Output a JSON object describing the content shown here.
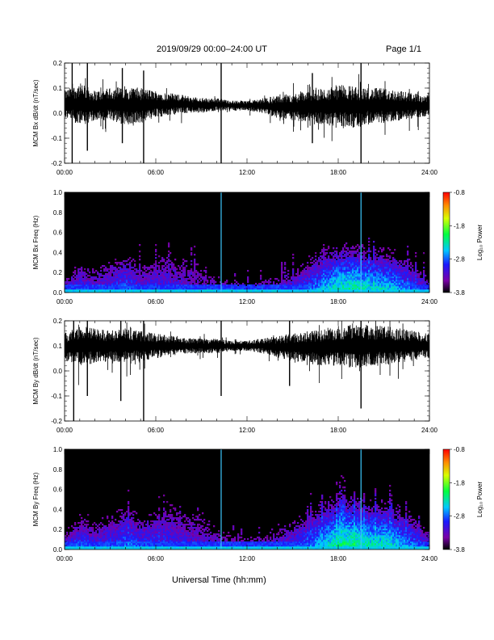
{
  "header": {
    "title": "2019/09/29  00:00–24:00 UT",
    "page": "Page 1/1"
  },
  "chart_data": [
    {
      "type": "line",
      "ylabel": "MCM Bx dB/dt (nT/sec)",
      "xlim": [
        0,
        24
      ],
      "ylim": [
        -0.2,
        0.2
      ],
      "xticks": [
        "00:00",
        "06:00",
        "12:00",
        "18:00",
        "24:00"
      ],
      "yticks": [
        "-0.2",
        "-0.1",
        "0.0",
        "0.1",
        "0.2"
      ],
      "envelope": {
        "hours": [
          0,
          1,
          2,
          3,
          4,
          5,
          6,
          7,
          8,
          9,
          10,
          11,
          12,
          13,
          14,
          15,
          16,
          17,
          18,
          19,
          20,
          21,
          22,
          23,
          24
        ],
        "upper": [
          0.09,
          0.12,
          0.09,
          0.1,
          0.11,
          0.1,
          0.09,
          0.08,
          0.07,
          0.06,
          0.06,
          0.05,
          0.05,
          0.06,
          0.07,
          0.08,
          0.09,
          0.1,
          0.11,
          0.11,
          0.1,
          0.1,
          0.09,
          0.08,
          0.07
        ],
        "lower": [
          -0.02,
          -0.05,
          -0.03,
          -0.03,
          -0.05,
          -0.04,
          -0.02,
          -0.01,
          0.0,
          0.0,
          0.01,
          0.01,
          0.01,
          0.0,
          -0.02,
          -0.03,
          -0.04,
          -0.05,
          -0.05,
          -0.06,
          -0.04,
          -0.04,
          -0.03,
          -0.02,
          -0.01
        ]
      },
      "spikes": [
        {
          "hour": 0.5,
          "min": -0.2,
          "max": 0.2
        },
        {
          "hour": 1.5,
          "min": -0.15,
          "max": 0.2
        },
        {
          "hour": 3.8,
          "min": -0.12,
          "max": 0.18
        },
        {
          "hour": 5.2,
          "min": -0.2,
          "max": 0.17
        },
        {
          "hour": 10.3,
          "min": -0.2,
          "max": 0.2
        },
        {
          "hour": 16.3,
          "min": -0.12,
          "max": 0.16
        },
        {
          "hour": 19.5,
          "min": -0.2,
          "max": 0.2
        }
      ]
    },
    {
      "type": "heatmap",
      "ylabel": "MCM Bx Freq (Hz)",
      "colorbar_label": "Log₁₀ Power",
      "xlim": [
        0,
        24
      ],
      "ylim": [
        0,
        1
      ],
      "xticks": [
        "00:00",
        "06:00",
        "12:00",
        "18:00",
        "24:00"
      ],
      "yticks": [
        "0.0",
        "0.2",
        "0.4",
        "0.6",
        "0.8",
        "1.0"
      ],
      "clim": [
        -3.8,
        -0.8
      ],
      "cticks": [
        "-0.8",
        "-1.8",
        "-2.8",
        "-3.8"
      ],
      "activity_hours": [
        0,
        1,
        2,
        3,
        4,
        5,
        6,
        7,
        8,
        9,
        10,
        11,
        12,
        13,
        14,
        15,
        16,
        17,
        18,
        19,
        20,
        21,
        22,
        23,
        24
      ],
      "activity_top_hz": [
        0.12,
        0.25,
        0.2,
        0.28,
        0.35,
        0.25,
        0.3,
        0.35,
        0.3,
        0.25,
        0.15,
        0.1,
        0.08,
        0.1,
        0.15,
        0.2,
        0.3,
        0.4,
        0.45,
        0.45,
        0.4,
        0.4,
        0.35,
        0.25,
        0.12
      ],
      "activity_strength": [
        0.3,
        0.4,
        0.3,
        0.35,
        0.45,
        0.35,
        0.35,
        0.3,
        0.25,
        0.2,
        0.15,
        0.1,
        0.1,
        0.15,
        0.2,
        0.3,
        0.45,
        0.6,
        0.75,
        0.8,
        0.7,
        0.7,
        0.6,
        0.45,
        0.3
      ],
      "vertical_lines_hours": [
        10.3,
        19.5
      ]
    },
    {
      "type": "line",
      "ylabel": "MCM By dB/dt (nT/sec)",
      "xlim": [
        0,
        24
      ],
      "ylim": [
        -0.2,
        0.2
      ],
      "xticks": [
        "00:00",
        "06:00",
        "12:00",
        "18:00",
        "24:00"
      ],
      "yticks": [
        "-0.2",
        "-0.1",
        "0.0",
        "0.1",
        "0.2"
      ],
      "envelope": {
        "hours": [
          0,
          1,
          2,
          3,
          4,
          5,
          6,
          7,
          8,
          9,
          10,
          11,
          12,
          13,
          14,
          15,
          16,
          17,
          18,
          19,
          20,
          21,
          22,
          23,
          24
        ],
        "upper": [
          0.15,
          0.18,
          0.17,
          0.16,
          0.17,
          0.16,
          0.15,
          0.14,
          0.13,
          0.13,
          0.13,
          0.12,
          0.12,
          0.13,
          0.14,
          0.15,
          0.16,
          0.17,
          0.18,
          0.19,
          0.18,
          0.18,
          0.17,
          0.16,
          0.15
        ],
        "lower": [
          0.04,
          0.02,
          0.03,
          0.04,
          0.03,
          0.04,
          0.05,
          0.06,
          0.07,
          0.07,
          0.07,
          0.08,
          0.08,
          0.07,
          0.05,
          0.04,
          0.03,
          0.02,
          0.02,
          0.01,
          0.02,
          0.02,
          0.03,
          0.04,
          0.05
        ]
      },
      "spikes": [
        {
          "hour": 0.6,
          "min": -0.2,
          "max": 0.2
        },
        {
          "hour": 1.5,
          "min": -0.1,
          "max": 0.2
        },
        {
          "hour": 3.7,
          "min": -0.12,
          "max": 0.2
        },
        {
          "hour": 5.2,
          "min": -0.2,
          "max": 0.2
        },
        {
          "hour": 10.3,
          "min": -0.1,
          "max": 0.2
        },
        {
          "hour": 14.8,
          "min": -0.06,
          "max": 0.2
        },
        {
          "hour": 19.5,
          "min": -0.15,
          "max": 0.2
        }
      ]
    },
    {
      "type": "heatmap",
      "ylabel": "MCM By Freq (Hz)",
      "colorbar_label": "Log₁₀ Power",
      "xlim": [
        0,
        24
      ],
      "ylim": [
        0,
        1
      ],
      "xticks": [
        "00:00",
        "06:00",
        "12:00",
        "18:00",
        "24:00"
      ],
      "yticks": [
        "0.0",
        "0.2",
        "0.4",
        "0.6",
        "0.8",
        "1.0"
      ],
      "clim": [
        -3.8,
        -0.8
      ],
      "cticks": [
        "-0.8",
        "-1.8",
        "-2.8",
        "-3.8"
      ],
      "activity_hours": [
        0,
        1,
        2,
        3,
        4,
        5,
        6,
        7,
        8,
        9,
        10,
        11,
        12,
        13,
        14,
        15,
        16,
        17,
        18,
        19,
        20,
        21,
        22,
        23,
        24
      ],
      "activity_top_hz": [
        0.15,
        0.3,
        0.25,
        0.3,
        0.4,
        0.3,
        0.35,
        0.4,
        0.35,
        0.3,
        0.2,
        0.12,
        0.1,
        0.12,
        0.2,
        0.25,
        0.35,
        0.45,
        0.5,
        0.5,
        0.45,
        0.45,
        0.4,
        0.3,
        0.15
      ],
      "activity_strength": [
        0.35,
        0.45,
        0.35,
        0.4,
        0.5,
        0.4,
        0.4,
        0.35,
        0.3,
        0.25,
        0.2,
        0.15,
        0.12,
        0.18,
        0.25,
        0.35,
        0.5,
        0.65,
        0.8,
        0.85,
        0.75,
        0.75,
        0.65,
        0.5,
        0.35
      ],
      "vertical_lines_hours": [
        10.3,
        19.5
      ]
    }
  ],
  "xaxis_label": "Universal Time (hh:mm)"
}
